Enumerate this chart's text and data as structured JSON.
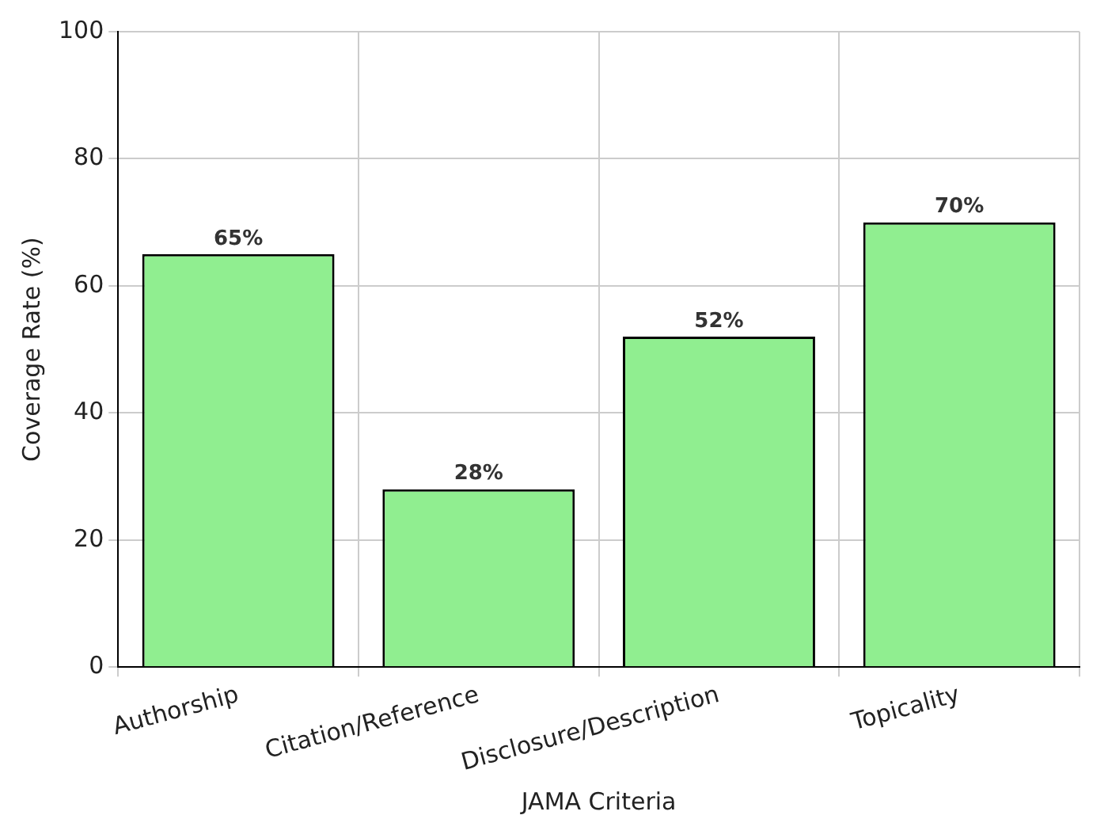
{
  "chart_data": {
    "type": "bar",
    "xlabel": "JAMA Criteria",
    "ylabel": "Coverage Rate (%)",
    "categories": [
      "Authorship",
      "Citation/Reference",
      "Disclosure/Description",
      "Topicality"
    ],
    "values": [
      65,
      28,
      52,
      70
    ],
    "value_labels": [
      "65%",
      "28%",
      "52%",
      "70%"
    ],
    "color": "#90ee90",
    "ylim": [
      0,
      100
    ],
    "yticks": [
      0,
      20,
      40,
      60,
      80,
      100
    ],
    "grid": true,
    "legend": false
  }
}
